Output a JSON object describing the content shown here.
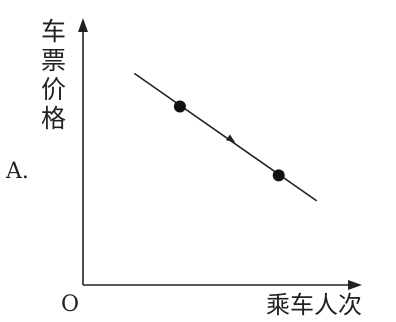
{
  "option_label": "A.",
  "chart_data": {
    "type": "line",
    "ylabel_chars": [
      "车",
      "票",
      "价",
      "格"
    ],
    "xlabel": "乘车人次",
    "origin_label": "O",
    "line": {
      "from": [
        0.27,
        0.83
      ],
      "to": [
        1.23,
        0.33
      ]
    },
    "points": [
      {
        "x": 0.51,
        "y": 0.7
      },
      {
        "x": 1.03,
        "y": 0.43
      }
    ],
    "arrow": {
      "at": [
        0.78,
        0.57
      ],
      "direction": "down-right"
    },
    "xlim": [
      0,
      1.4
    ],
    "ylim": [
      0,
      1.0
    ],
    "grid": false,
    "legend": "none"
  }
}
